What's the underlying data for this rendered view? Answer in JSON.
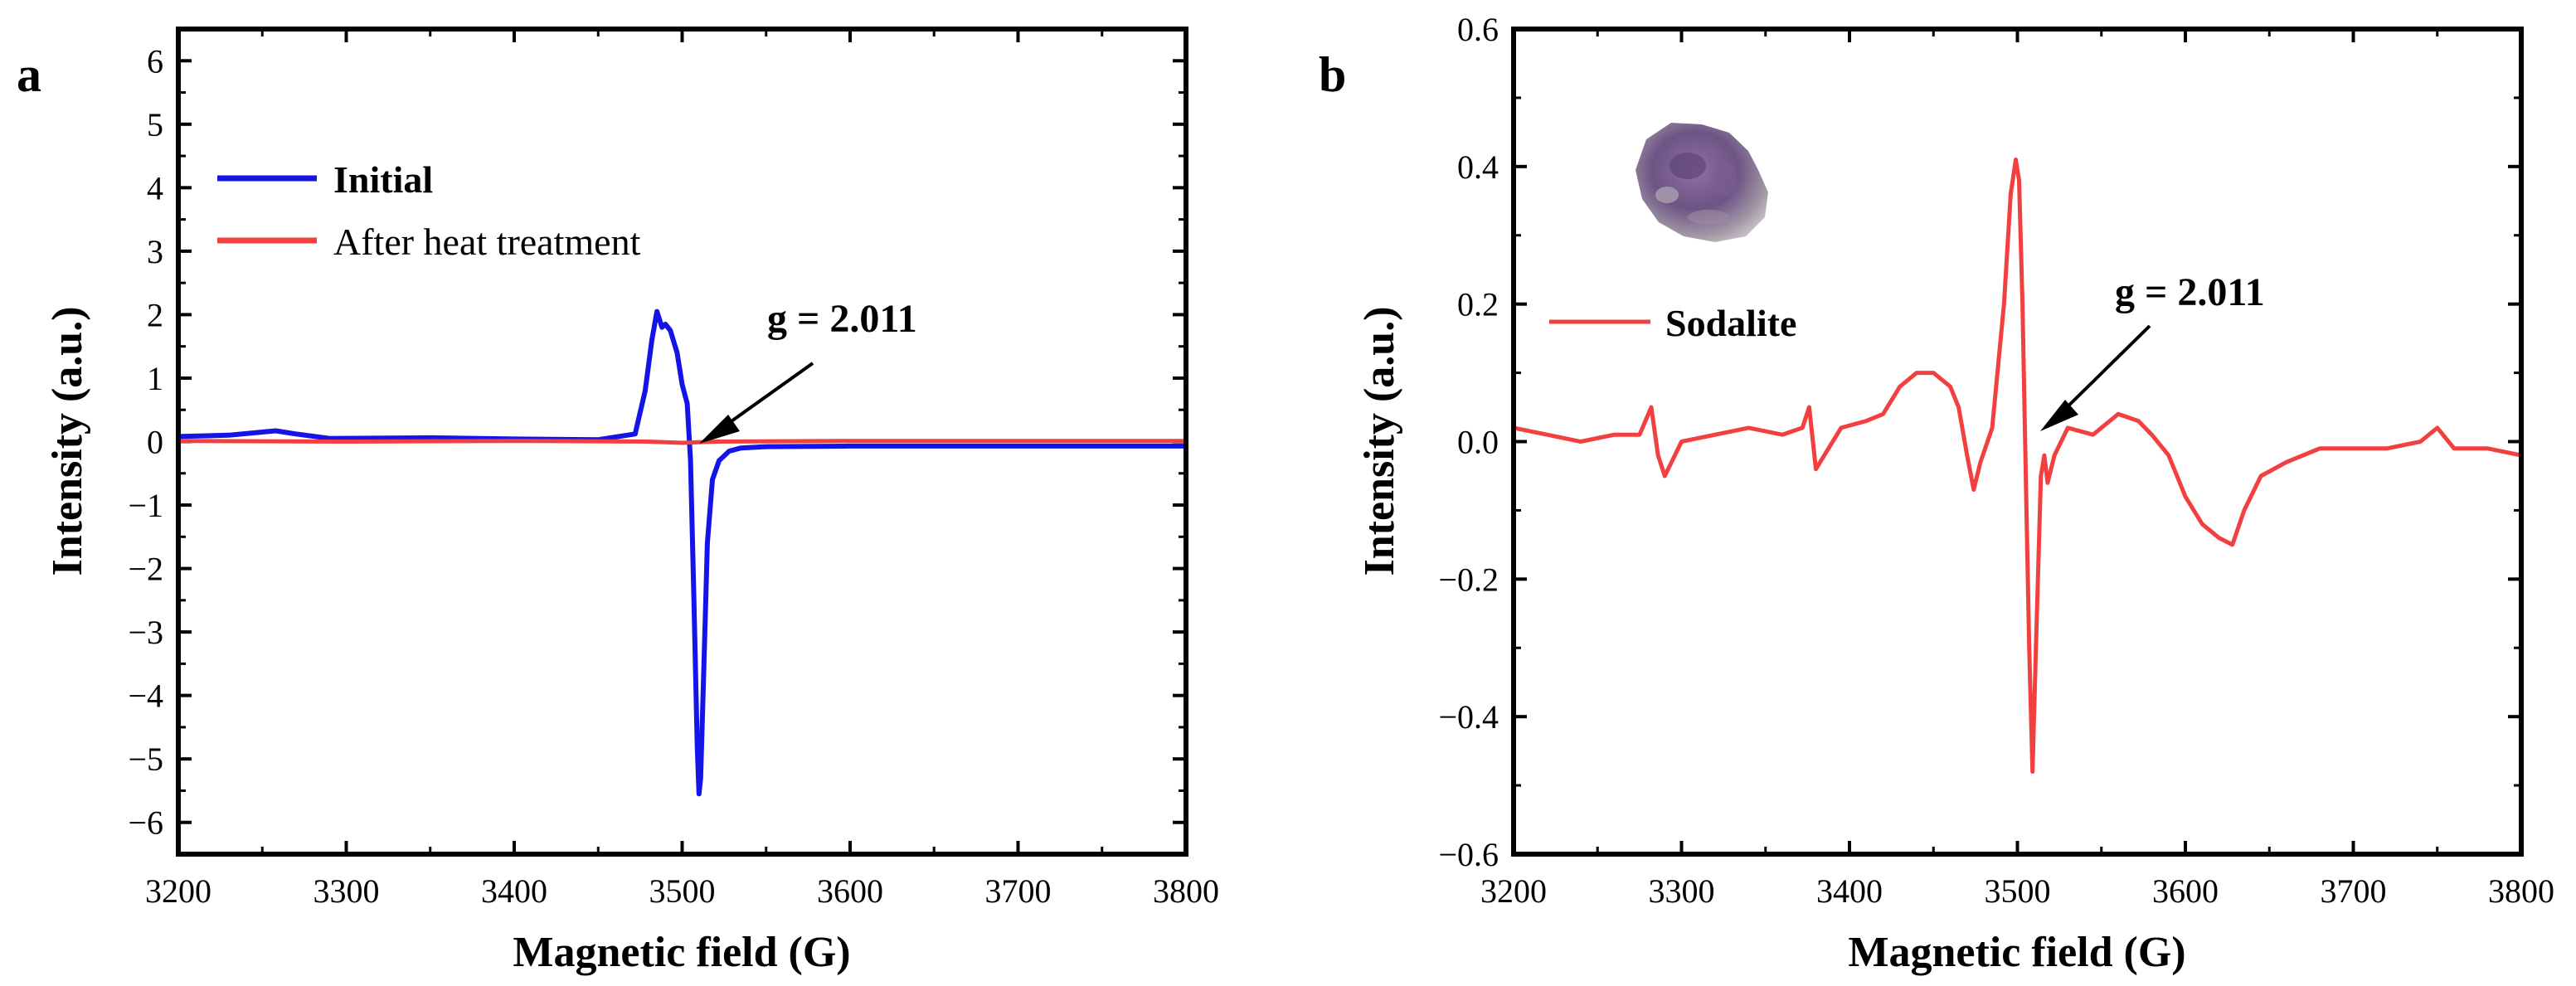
{
  "colors": {
    "initial": "#1414e6",
    "heat": "#f24040",
    "sodalite": "#f24040",
    "axis": "#000000"
  },
  "chart_data": [
    {
      "type": "line",
      "panel_label": "a",
      "xlabel": "Magnetic field (G)",
      "ylabel": "Intensity (a.u.)",
      "xlim": [
        3200,
        3800
      ],
      "ylim": [
        -6.5,
        6.5
      ],
      "x_ticks": [
        "3200",
        "3300",
        "3400",
        "3500",
        "3600",
        "3700",
        "3800"
      ],
      "y_ticks": [
        "6",
        "5",
        "4",
        "3",
        "2",
        "1",
        "0",
        "−1",
        "−2",
        "−3",
        "−4",
        "−5",
        "−6"
      ],
      "y_tick_values": [
        6,
        5,
        4,
        3,
        2,
        1,
        0,
        -1,
        -2,
        -3,
        -4,
        -5,
        -6
      ],
      "legend_position": "top-left",
      "annotation": {
        "text": "g = 2.011",
        "x": 3510,
        "y": 0
      },
      "series": [
        {
          "name": "Initial",
          "color_key": "initial",
          "x": [
            3200,
            3230,
            3250,
            3258,
            3270,
            3290,
            3350,
            3400,
            3450,
            3472,
            3478,
            3482,
            3485,
            3488,
            3490,
            3493,
            3497,
            3500,
            3503,
            3505,
            3507,
            3509,
            3510,
            3511,
            3513,
            3515,
            3518,
            3522,
            3528,
            3535,
            3550,
            3600,
            3700,
            3800
          ],
          "y": [
            0.08,
            0.1,
            0.15,
            0.17,
            0.12,
            0.05,
            0.06,
            0.04,
            0.03,
            0.12,
            0.8,
            1.6,
            2.05,
            1.8,
            1.85,
            1.75,
            1.4,
            0.9,
            0.6,
            -0.3,
            -2.5,
            -4.8,
            -5.55,
            -5.3,
            -3.5,
            -1.6,
            -0.6,
            -0.3,
            -0.15,
            -0.1,
            -0.08,
            -0.07,
            -0.07,
            -0.07
          ]
        },
        {
          "name": "After heat treatment",
          "color_key": "heat",
          "x": [
            3200,
            3300,
            3400,
            3480,
            3500,
            3520,
            3600,
            3700,
            3800
          ],
          "y": [
            0.01,
            0.0,
            0.01,
            0.0,
            -0.02,
            0.0,
            0.01,
            0.01,
            0.01
          ]
        }
      ]
    },
    {
      "type": "line",
      "panel_label": "b",
      "xlabel": "Magnetic field (G)",
      "ylabel": "Intensity (a.u.)",
      "xlim": [
        3200,
        3800
      ],
      "ylim": [
        -0.6,
        0.6
      ],
      "x_ticks": [
        "3200",
        "3300",
        "3400",
        "3500",
        "3600",
        "3700",
        "3800"
      ],
      "y_ticks": [
        "0.6",
        "0.4",
        "0.2",
        "0.0",
        "−0.2",
        "−0.4",
        "−0.6"
      ],
      "y_tick_values": [
        0.6,
        0.4,
        0.2,
        0.0,
        -0.2,
        -0.4,
        -0.6
      ],
      "legend_position": "top-left",
      "annotation": {
        "text": "g = 2.011",
        "x": 3505,
        "y": 0.02
      },
      "inset": "amethyst-colored mineral sample photo",
      "series": [
        {
          "name": "Sodalite",
          "color_key": "sodalite",
          "x": [
            3200,
            3220,
            3240,
            3260,
            3275,
            3282,
            3286,
            3290,
            3300,
            3320,
            3340,
            3360,
            3372,
            3376,
            3380,
            3395,
            3410,
            3420,
            3430,
            3440,
            3450,
            3460,
            3465,
            3470,
            3474,
            3478,
            3485,
            3492,
            3496,
            3499,
            3501,
            3503,
            3505,
            3507,
            3509,
            3511,
            3514,
            3516,
            3518,
            3522,
            3530,
            3545,
            3560,
            3572,
            3580,
            3590,
            3600,
            3610,
            3620,
            3628,
            3635,
            3645,
            3660,
            3680,
            3700,
            3720,
            3740,
            3750,
            3760,
            3780,
            3800
          ],
          "y": [
            0.02,
            0.01,
            0.0,
            0.01,
            0.01,
            0.05,
            -0.02,
            -0.05,
            0.0,
            0.01,
            0.02,
            0.01,
            0.02,
            0.05,
            -0.04,
            0.02,
            0.03,
            0.04,
            0.08,
            0.1,
            0.1,
            0.08,
            0.05,
            -0.02,
            -0.07,
            -0.03,
            0.02,
            0.2,
            0.36,
            0.41,
            0.38,
            0.2,
            -0.05,
            -0.3,
            -0.48,
            -0.3,
            -0.05,
            -0.02,
            -0.06,
            -0.02,
            0.02,
            0.01,
            0.04,
            0.03,
            0.01,
            -0.02,
            -0.08,
            -0.12,
            -0.14,
            -0.15,
            -0.1,
            -0.05,
            -0.03,
            -0.01,
            -0.01,
            -0.01,
            0.0,
            0.02,
            -0.01,
            -0.01,
            -0.02
          ]
        }
      ]
    }
  ]
}
